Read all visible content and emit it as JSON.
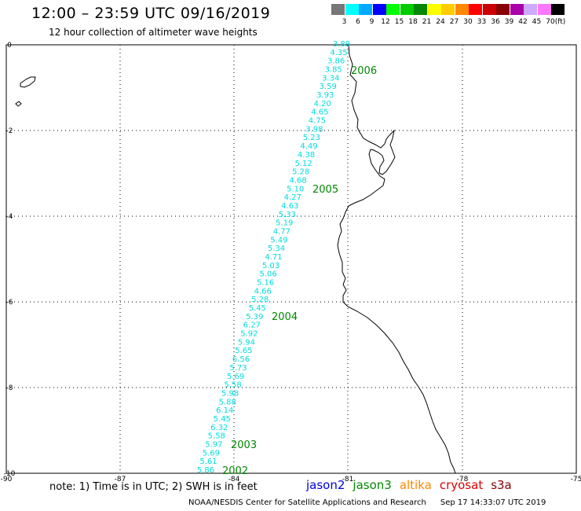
{
  "title": "12:00 – 23:59 UTC 09/16/2019",
  "subtitle": "12 hour collection of altimeter wave heights",
  "legend": {
    "unit": "(ft)",
    "bins": [
      {
        "label": "3",
        "color": "#777777"
      },
      {
        "label": "6",
        "color": "#00ffff"
      },
      {
        "label": "9",
        "color": "#00aaff"
      },
      {
        "label": "12",
        "color": "#0000ff"
      },
      {
        "label": "15",
        "color": "#00ff00"
      },
      {
        "label": "18",
        "color": "#00cc00"
      },
      {
        "label": "21",
        "color": "#008800"
      },
      {
        "label": "24",
        "color": "#ffff00"
      },
      {
        "label": "27",
        "color": "#ffcc00"
      },
      {
        "label": "30",
        "color": "#ff8800"
      },
      {
        "label": "33",
        "color": "#ff0000"
      },
      {
        "label": "36",
        "color": "#cc0000"
      },
      {
        "label": "39",
        "color": "#880000"
      },
      {
        "label": "42",
        "color": "#aa00aa"
      },
      {
        "label": "45",
        "color": "#ccaaff"
      },
      {
        "label": "70",
        "color": "#ff77ff"
      },
      {
        "label": "",
        "color": "#000000"
      }
    ]
  },
  "map": {
    "lon_ticks": [
      "-90",
      "-87",
      "-84",
      "-81",
      "-78",
      "-75"
    ],
    "lat_ticks": [
      "0",
      "-2",
      "-4",
      "-6",
      "-8",
      "-10"
    ],
    "track_color": "#00dddd",
    "swh_values": [
      "3.89",
      "4.35",
      "3.86",
      "3.85",
      "3.34",
      "3.59",
      "3.93",
      "4.20",
      "4.65",
      "4.75",
      "3.98",
      "5.23",
      "4.49",
      "4.38",
      "5.12",
      "5.28",
      "4.68",
      "5.10",
      "4.27",
      "4.63",
      "5.33",
      "5.19",
      "4.77",
      "5.49",
      "5.34",
      "4.71",
      "5.03",
      "5.06",
      "5.16",
      "4.66",
      "5.28",
      "5.45",
      "5.39",
      "6.27",
      "5.92",
      "5.94",
      "5.65",
      "6.56",
      "5.73",
      "5.69",
      "5.58",
      "5.98",
      "5.88",
      "6.14",
      "5.45",
      "6.32",
      "5.58",
      "5.97",
      "5.69",
      "5.61",
      "5.86"
    ],
    "time_color": "#008800",
    "time_labels": [
      "2006",
      "2005",
      "2004",
      "2003",
      "2002"
    ]
  },
  "note": "note: 1) Time is in UTC; 2) SWH is in feet",
  "satellites": [
    {
      "name": "jason2",
      "color": "#0000dd"
    },
    {
      "name": "jason3",
      "color": "#008800"
    },
    {
      "name": "altika",
      "color": "#ff8800"
    },
    {
      "name": "cryosat",
      "color": "#dd0000"
    },
    {
      "name": "s3a",
      "color": "#880000"
    }
  ],
  "footer": {
    "credit": "NOAA/NESDIS Center for Satellite Applications and Research",
    "timestamp": "Sep 17 14:33:07 UTC 2019"
  }
}
